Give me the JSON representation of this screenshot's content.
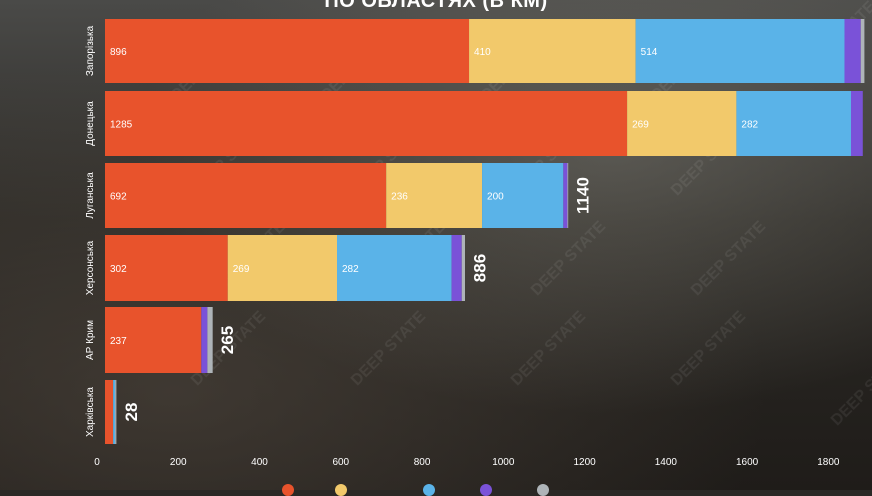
{
  "colors": {
    "occupied": "#e8532c",
    "liberated": "#f2c96b",
    "grey_zone": "#5ab3e8",
    "fifth": "#7a52d8",
    "sixth": "#aeb4b8"
  },
  "watermark_text": "DEEP STATE",
  "chart_data": {
    "type": "bar",
    "orientation": "horizontal",
    "stacked": true,
    "title": "ПО ОБЛАСТЯХ (В КМ)",
    "categories": [
      "Запорізька",
      "Донецька",
      "Луганська",
      "Херсонська",
      "АР Крим",
      "Харківська"
    ],
    "series": [
      {
        "color": "#e8532c",
        "values": [
          896,
          1285,
          692,
          302,
          237,
          20
        ]
      },
      {
        "color": "#f2c96b",
        "values": [
          410,
          269,
          236,
          269,
          0,
          0
        ]
      },
      {
        "color": "#5ab3e8",
        "values": [
          514,
          282,
          200,
          282,
          0,
          5
        ]
      },
      {
        "color": "#7a52d8",
        "values": [
          40,
          29,
          10,
          25,
          15,
          0
        ]
      },
      {
        "color": "#aeb4b8",
        "values": [
          9,
          0,
          2,
          8,
          13,
          3
        ]
      }
    ],
    "totals": [
      1869,
      1865,
      1140,
      886,
      265,
      28
    ],
    "x_ticks": [
      0,
      200,
      400,
      600,
      800,
      1000,
      1200,
      1400,
      1600,
      1800
    ],
    "xlim": [
      0,
      1900
    ],
    "grid": false,
    "legend_position": "bottom"
  }
}
